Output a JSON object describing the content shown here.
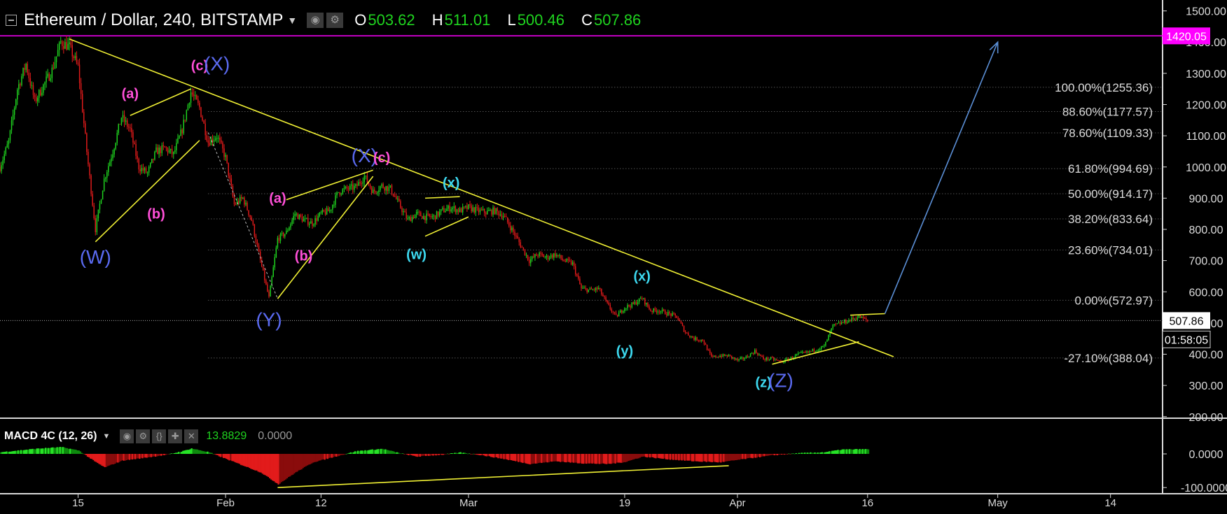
{
  "header": {
    "symbol_title": "Ethereum / Dollar, 240, BITSTAMP",
    "open_label": "O",
    "open": "503.62",
    "high_label": "H",
    "high": "511.01",
    "low_label": "L",
    "low": "500.46",
    "close_label": "C",
    "close": "507.86",
    "toolbar_icons": [
      "eye-icon",
      "gear-icon"
    ]
  },
  "macd_header": {
    "name": "MACD 4C (12, 26)",
    "value1": "13.8829",
    "value2": "0.0000",
    "toolbar_icons": [
      "eye-icon",
      "gear-icon",
      "braces-icon",
      "plus-icon",
      "close-icon"
    ]
  },
  "colors": {
    "up": "#1fd41f",
    "down": "#e21b1b",
    "trendline": "#f0f034",
    "target_line": "#ff00ff",
    "projection": "#5b8fd6",
    "wave_major": "#5a6af0",
    "wave_minor": "#ff4fd8",
    "wave_cyan": "#3dd9f0"
  },
  "chart_data": [
    {
      "type": "candlestick",
      "title": "Ethereum / Dollar, 240, BITSTAMP",
      "y_axis_ticks": [
        "1500.00",
        "1400.00",
        "1300.00",
        "1200.00",
        "1100.00",
        "1000.00",
        "900.00",
        "800.00",
        "700.00",
        "600.00",
        "500.00",
        "400.00",
        "300.00",
        "200.00"
      ],
      "ylim": [
        195,
        1535
      ],
      "x_axis_labels": [
        "15",
        "Feb",
        "12",
        "Mar",
        "19",
        "Apr",
        "16",
        "May",
        "14"
      ],
      "x_tick_dates": [
        "2018-01-15",
        "2018-02-01",
        "2018-02-12",
        "2018-03-01",
        "2018-03-19",
        "2018-04-01",
        "2018-04-16",
        "2018-05-01",
        "2018-05-14"
      ],
      "xlim": [
        "2018-01-06",
        "2018-05-20"
      ],
      "last_date": "2018-04-16",
      "price_path": [
        [
          "2018-01-06",
          1000
        ],
        [
          "2018-01-07",
          1080
        ],
        [
          "2018-01-08",
          1250
        ],
        [
          "2018-01-09",
          1330
        ],
        [
          "2018-01-10",
          1210
        ],
        [
          "2018-01-11",
          1260
        ],
        [
          "2018-01-12",
          1310
        ],
        [
          "2018-01-13",
          1400
        ],
        [
          "2018-01-14",
          1385
        ],
        [
          "2018-01-15",
          1320
        ],
        [
          "2018-01-16",
          1050
        ],
        [
          "2018-01-17",
          800
        ],
        [
          "2018-01-18",
          960
        ],
        [
          "2018-01-19",
          1050
        ],
        [
          "2018-01-20",
          1160
        ],
        [
          "2018-01-21",
          1120
        ],
        [
          "2018-01-22",
          1000
        ],
        [
          "2018-01-23",
          980
        ],
        [
          "2018-01-24",
          1050
        ],
        [
          "2018-01-25",
          1060
        ],
        [
          "2018-01-26",
          1040
        ],
        [
          "2018-01-27",
          1120
        ],
        [
          "2018-01-28",
          1240
        ],
        [
          "2018-01-29",
          1190
        ],
        [
          "2018-01-30",
          1080
        ],
        [
          "2018-01-31",
          1100
        ],
        [
          "2018-02-01",
          1030
        ],
        [
          "2018-02-02",
          880
        ],
        [
          "2018-02-03",
          900
        ],
        [
          "2018-02-04",
          830
        ],
        [
          "2018-02-05",
          700
        ],
        [
          "2018-02-06",
          580
        ],
        [
          "2018-02-07",
          770
        ],
        [
          "2018-02-08",
          790
        ],
        [
          "2018-02-09",
          850
        ],
        [
          "2018-02-10",
          830
        ],
        [
          "2018-02-11",
          820
        ],
        [
          "2018-02-12",
          850
        ],
        [
          "2018-02-13",
          860
        ],
        [
          "2018-02-14",
          920
        ],
        [
          "2018-02-15",
          930
        ],
        [
          "2018-02-16",
          935
        ],
        [
          "2018-02-17",
          970
        ],
        [
          "2018-02-18",
          920
        ],
        [
          "2018-02-19",
          940
        ],
        [
          "2018-02-20",
          930
        ],
        [
          "2018-02-21",
          880
        ],
        [
          "2018-02-22",
          830
        ],
        [
          "2018-02-23",
          850
        ],
        [
          "2018-02-24",
          840
        ],
        [
          "2018-02-25",
          840
        ],
        [
          "2018-02-26",
          860
        ],
        [
          "2018-02-27",
          870
        ],
        [
          "2018-02-28",
          860
        ],
        [
          "2018-03-01",
          870
        ],
        [
          "2018-03-02",
          860
        ],
        [
          "2018-03-03",
          855
        ],
        [
          "2018-03-04",
          860
        ],
        [
          "2018-03-05",
          845
        ],
        [
          "2018-03-06",
          800
        ],
        [
          "2018-03-07",
          750
        ],
        [
          "2018-03-08",
          700
        ],
        [
          "2018-03-09",
          720
        ],
        [
          "2018-03-10",
          710
        ],
        [
          "2018-03-11",
          720
        ],
        [
          "2018-03-12",
          700
        ],
        [
          "2018-03-13",
          690
        ],
        [
          "2018-03-14",
          610
        ],
        [
          "2018-03-15",
          605
        ],
        [
          "2018-03-16",
          610
        ],
        [
          "2018-03-17",
          560
        ],
        [
          "2018-03-18",
          520
        ],
        [
          "2018-03-19",
          550
        ],
        [
          "2018-03-20",
          560
        ],
        [
          "2018-03-21",
          580
        ],
        [
          "2018-03-22",
          540
        ],
        [
          "2018-03-23",
          540
        ],
        [
          "2018-03-24",
          530
        ],
        [
          "2018-03-25",
          520
        ],
        [
          "2018-03-26",
          470
        ],
        [
          "2018-03-27",
          450
        ],
        [
          "2018-03-28",
          445
        ],
        [
          "2018-03-29",
          390
        ],
        [
          "2018-03-30",
          395
        ],
        [
          "2018-03-31",
          395
        ],
        [
          "2018-04-01",
          380
        ],
        [
          "2018-04-02",
          390
        ],
        [
          "2018-04-03",
          410
        ],
        [
          "2018-04-04",
          385
        ],
        [
          "2018-04-05",
          385
        ],
        [
          "2018-04-06",
          375
        ],
        [
          "2018-04-07",
          385
        ],
        [
          "2018-04-08",
          400
        ],
        [
          "2018-04-09",
          405
        ],
        [
          "2018-04-10",
          415
        ],
        [
          "2018-04-11",
          425
        ],
        [
          "2018-04-12",
          490
        ],
        [
          "2018-04-13",
          500
        ],
        [
          "2018-04-14",
          510
        ],
        [
          "2018-04-15",
          520
        ],
        [
          "2018-04-16",
          507.86
        ]
      ],
      "horizontal_levels": [
        {
          "label": "100.00%(1255.36)",
          "value": 1255.36
        },
        {
          "label": "88.60%(1177.57)",
          "value": 1177.57
        },
        {
          "label": "78.60%(1109.33)",
          "value": 1109.33
        },
        {
          "label": "61.80%(994.69)",
          "value": 994.69
        },
        {
          "label": "50.00%(914.17)",
          "value": 914.17
        },
        {
          "label": "38.20%(833.64)",
          "value": 833.64
        },
        {
          "label": "23.60%(734.01)",
          "value": 734.01
        },
        {
          "label": "0.00%(572.97)",
          "value": 572.97
        },
        {
          "label": "-27.10%(388.04)",
          "value": 388.04
        }
      ],
      "fib_start_date": "2018-01-30",
      "price_tags": [
        {
          "text": "1420.05",
          "value": 1420.05,
          "style": "magenta"
        },
        {
          "text": "507.86",
          "value": 507.86,
          "style": "white"
        },
        {
          "text": "01:58:05",
          "value": 462,
          "style": "timer"
        }
      ],
      "target_line": {
        "value": 1420.05,
        "from": "2018-01-06"
      },
      "trendlines": [
        {
          "from": [
            "2018-01-14",
            1410
          ],
          "to": [
            "2018-04-19",
            392
          ],
          "color": "trendline"
        },
        {
          "from": [
            "2018-01-17",
            760
          ],
          "to": [
            "2018-01-29",
            1085
          ],
          "color": "trendline"
        },
        {
          "from": [
            "2018-01-21",
            1165
          ],
          "to": [
            "2018-01-28",
            1250
          ],
          "color": "trendline"
        },
        {
          "from": [
            "2018-02-07",
            578
          ],
          "to": [
            "2018-02-18",
            970
          ],
          "color": "trendline"
        },
        {
          "from": [
            "2018-02-08",
            895
          ],
          "to": [
            "2018-02-18",
            990
          ],
          "color": "trendline"
        },
        {
          "from": [
            "2018-02-24",
            900
          ],
          "to": [
            "2018-02-28",
            905
          ],
          "color": "trendline"
        },
        {
          "from": [
            "2018-02-24",
            778
          ],
          "to": [
            "2018-03-01",
            840
          ],
          "color": "trendline"
        },
        {
          "from": [
            "2018-04-05",
            368
          ],
          "to": [
            "2018-04-15",
            440
          ],
          "color": "trendline"
        },
        {
          "from": [
            "2018-04-14",
            525
          ],
          "to": [
            "2018-04-18",
            530
          ],
          "color": "trendline"
        }
      ],
      "dashed_line": {
        "from": [
          "2018-01-30",
          1110
        ],
        "to": [
          "2018-02-07",
          578
        ]
      },
      "projection_arrow": {
        "from": [
          "2018-04-18",
          530
        ],
        "to": [
          "2018-05-01",
          1400
        ]
      },
      "wave_labels": [
        {
          "text": "(W)",
          "date": "2018-01-17",
          "value": 690,
          "style": "wave_major"
        },
        {
          "text": "(a)",
          "date": "2018-01-21",
          "value": 1220,
          "style": "wave_minor"
        },
        {
          "text": "(b)",
          "date": "2018-01-24",
          "value": 835,
          "style": "wave_minor"
        },
        {
          "text": "(c)",
          "date": "2018-01-29",
          "value": 1310,
          "style": "wave_minor"
        },
        {
          "text": "(X)",
          "date": "2018-01-31",
          "value": 1310,
          "style": "wave_major"
        },
        {
          "text": "(Y)",
          "date": "2018-02-06",
          "value": 490,
          "style": "wave_major"
        },
        {
          "text": "(a)",
          "date": "2018-02-07",
          "value": 885,
          "style": "wave_minor"
        },
        {
          "text": "(b)",
          "date": "2018-02-10",
          "value": 700,
          "style": "wave_minor"
        },
        {
          "text": "(X)",
          "date": "2018-02-17",
          "value": 1015,
          "style": "wave_major"
        },
        {
          "text": "(c)",
          "date": "2018-02-19",
          "value": 1015,
          "style": "wave_minor"
        },
        {
          "text": "(x)",
          "date": "2018-02-27",
          "value": 935,
          "style": "wave_cyan"
        },
        {
          "text": "(w)",
          "date": "2018-02-23",
          "value": 705,
          "style": "wave_cyan"
        },
        {
          "text": "(x)",
          "date": "2018-03-21",
          "value": 635,
          "style": "wave_cyan"
        },
        {
          "text": "(y)",
          "date": "2018-03-19",
          "value": 395,
          "style": "wave_cyan"
        },
        {
          "text": "(z)",
          "date": "2018-04-04",
          "value": 295,
          "style": "wave_cyan"
        },
        {
          "text": "(Z)",
          "date": "2018-04-06",
          "value": 295,
          "style": "wave_major"
        }
      ]
    },
    {
      "type": "histogram",
      "name": "MACD 4C (12, 26)",
      "y_axis_ticks": [
        "0.0000",
        "-100.0000"
      ],
      "ylim": [
        -110,
        25
      ],
      "macd_path": [
        [
          "2018-01-06",
          5
        ],
        [
          "2018-01-10",
          15
        ],
        [
          "2018-01-13",
          20
        ],
        [
          "2018-01-15",
          10
        ],
        [
          "2018-01-17",
          -25
        ],
        [
          "2018-01-18",
          -40
        ],
        [
          "2018-01-20",
          -20
        ],
        [
          "2018-01-23",
          -10
        ],
        [
          "2018-01-25",
          -3
        ],
        [
          "2018-01-27",
          8
        ],
        [
          "2018-01-28",
          16
        ],
        [
          "2018-01-30",
          5
        ],
        [
          "2018-02-02",
          -25
        ],
        [
          "2018-02-05",
          -55
        ],
        [
          "2018-02-07",
          -90
        ],
        [
          "2018-02-09",
          -55
        ],
        [
          "2018-02-11",
          -25
        ],
        [
          "2018-02-14",
          -5
        ],
        [
          "2018-02-16",
          8
        ],
        [
          "2018-02-19",
          15
        ],
        [
          "2018-02-21",
          2
        ],
        [
          "2018-02-23",
          -8
        ],
        [
          "2018-02-26",
          -2
        ],
        [
          "2018-02-28",
          4
        ],
        [
          "2018-03-02",
          -2
        ],
        [
          "2018-03-05",
          -15
        ],
        [
          "2018-03-08",
          -30
        ],
        [
          "2018-03-11",
          -22
        ],
        [
          "2018-03-14",
          -28
        ],
        [
          "2018-03-17",
          -30
        ],
        [
          "2018-03-19",
          -24
        ],
        [
          "2018-03-21",
          -8
        ],
        [
          "2018-03-24",
          -16
        ],
        [
          "2018-03-27",
          -22
        ],
        [
          "2018-03-30",
          -25
        ],
        [
          "2018-04-02",
          -14
        ],
        [
          "2018-04-05",
          -4
        ],
        [
          "2018-04-08",
          2
        ],
        [
          "2018-04-11",
          5
        ],
        [
          "2018-04-13",
          13
        ],
        [
          "2018-04-16",
          13.88
        ]
      ],
      "divergence_line": {
        "from": [
          "2018-02-07",
          -100
        ],
        "to": [
          "2018-03-31",
          -35
        ]
      }
    }
  ]
}
